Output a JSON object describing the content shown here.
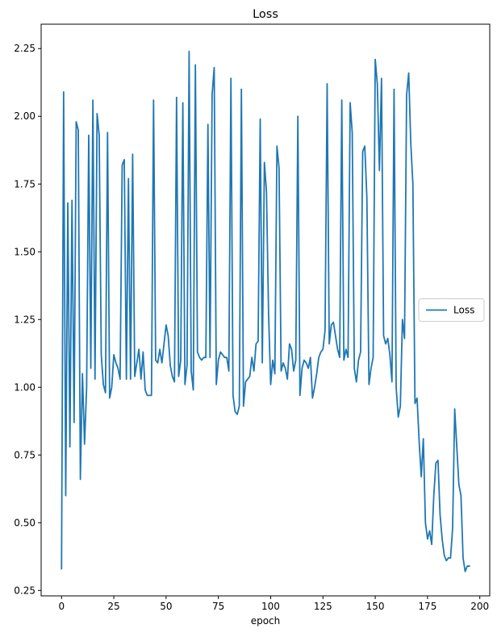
{
  "chart_data": {
    "type": "line",
    "title": "Loss",
    "xlabel": "epoch",
    "ylabel": "",
    "xlim": [
      -9.75,
      204.75
    ],
    "ylim": [
      0.23,
      2.34
    ],
    "xticks": [
      0,
      25,
      50,
      75,
      100,
      125,
      150,
      175,
      200
    ],
    "yticks": [
      0.25,
      0.5,
      0.75,
      1.0,
      1.25,
      1.5,
      1.75,
      2.0,
      2.25
    ],
    "ytick_labels": [
      "0.25",
      "0.50",
      "0.75",
      "1.00",
      "1.25",
      "1.50",
      "1.75",
      "2.00",
      "2.25"
    ],
    "grid": false,
    "legend_position": "center-right",
    "series": [
      {
        "name": "Loss",
        "color": "#1f77b4",
        "y": [
          0.33,
          2.09,
          0.6,
          1.68,
          0.78,
          1.69,
          0.87,
          1.98,
          1.95,
          0.66,
          1.05,
          0.79,
          1.0,
          1.93,
          1.07,
          2.06,
          1.03,
          2.01,
          1.93,
          1.12,
          1.01,
          0.98,
          1.94,
          0.96,
          1.0,
          1.12,
          1.09,
          1.07,
          1.03,
          1.82,
          1.84,
          1.03,
          1.77,
          1.03,
          1.86,
          1.04,
          1.09,
          1.14,
          1.03,
          1.13,
          0.99,
          0.97,
          0.97,
          0.97,
          2.06,
          1.1,
          1.09,
          1.14,
          1.09,
          1.16,
          1.23,
          1.19,
          1.08,
          1.04,
          1.02,
          2.07,
          1.04,
          1.1,
          2.05,
          1.01,
          1.08,
          2.24,
          1.06,
          0.99,
          2.19,
          1.13,
          1.11,
          1.1,
          1.11,
          1.11,
          1.97,
          1.11,
          2.08,
          2.18,
          1.01,
          1.1,
          1.13,
          1.12,
          1.11,
          1.11,
          1.06,
          2.14,
          0.97,
          0.91,
          0.9,
          0.93,
          2.1,
          0.93,
          1.02,
          1.03,
          1.04,
          1.11,
          1.06,
          1.16,
          1.17,
          1.99,
          1.09,
          1.83,
          1.72,
          1.27,
          1.01,
          1.1,
          1.05,
          1.89,
          1.81,
          1.06,
          1.09,
          1.07,
          1.03,
          1.16,
          1.14,
          1.06,
          1.1,
          2.0,
          0.97,
          1.07,
          1.1,
          1.09,
          1.07,
          1.11,
          0.96,
          1.0,
          1.05,
          1.11,
          1.13,
          1.14,
          1.21,
          2.12,
          1.16,
          1.23,
          1.24,
          1.19,
          1.14,
          1.11,
          2.06,
          1.1,
          1.14,
          1.11,
          2.05,
          1.94,
          1.07,
          1.02,
          1.1,
          1.13,
          1.87,
          1.89,
          1.7,
          1.01,
          1.07,
          1.11,
          2.21,
          2.12,
          1.8,
          2.14,
          1.19,
          1.16,
          1.18,
          1.12,
          1.02,
          2.1,
          1.0,
          0.89,
          0.93,
          1.25,
          1.18,
          2.08,
          2.16,
          1.9,
          1.75,
          0.94,
          0.96,
          0.8,
          0.67,
          0.81,
          0.5,
          0.44,
          0.47,
          0.42,
          0.6,
          0.72,
          0.73,
          0.53,
          0.44,
          0.38,
          0.36,
          0.37,
          0.37,
          0.48,
          0.92,
          0.78,
          0.64,
          0.6,
          0.37,
          0.32,
          0.34,
          0.34
        ]
      }
    ]
  }
}
